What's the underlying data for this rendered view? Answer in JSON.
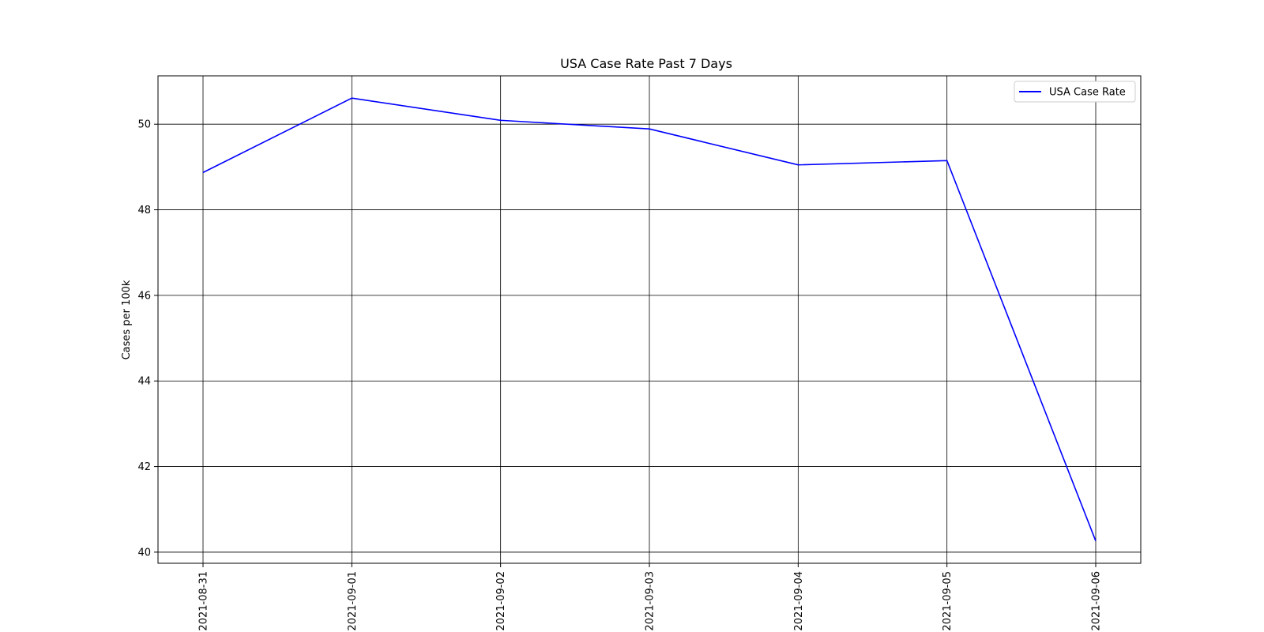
{
  "chart_data": {
    "type": "line",
    "title": "USA Case Rate Past 7 Days",
    "xlabel": "",
    "ylabel": "Cases per 100k",
    "categories": [
      "2021-08-31",
      "2021-09-01",
      "2021-09-02",
      "2021-09-03",
      "2021-09-04",
      "2021-09-05",
      "2021-09-06"
    ],
    "series": [
      {
        "name": "USA Case Rate",
        "color": "#0000ff",
        "values": [
          48.87,
          50.61,
          50.09,
          49.89,
          49.05,
          49.15,
          40.26
        ]
      }
    ],
    "ylim": [
      39.74,
      51.13
    ],
    "yticks": [
      40,
      42,
      44,
      46,
      48,
      50
    ],
    "grid": true,
    "grid_color": "#000000",
    "legend_position": "top-right"
  }
}
